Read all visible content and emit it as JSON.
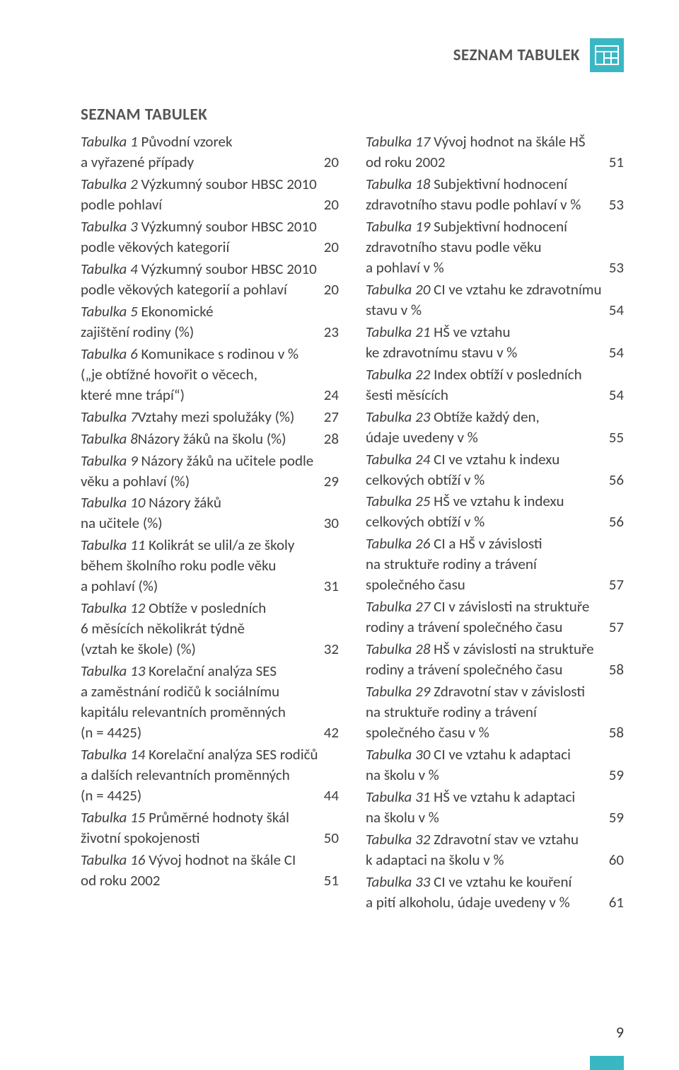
{
  "header": {
    "title": "SEZNAM TABULEK"
  },
  "section_title": "SEZNAM TABULEK",
  "page_number": "9",
  "colors": {
    "accent": "#3bb7c4",
    "text": "#404040",
    "title": "#555555",
    "background": "#ffffff"
  },
  "icon": {
    "line_stroke": "#ffffff",
    "line_width": 2
  },
  "left_entries": [
    {
      "lines": [
        "Tabulka 1 Původní vzorek",
        "a vyřazené případy"
      ],
      "italic_upto": 9,
      "page": "20"
    },
    {
      "lines": [
        "Tabulka 2 Výzkumný soubor HBSC 2010",
        "podle pohlaví"
      ],
      "italic_upto": 9,
      "page": "20"
    },
    {
      "lines": [
        "Tabulka 3 Výzkumný soubor HBSC 2010",
        "podle věkových kategorií"
      ],
      "italic_upto": 9,
      "page": "20"
    },
    {
      "lines": [
        "Tabulka 4 Výzkumný soubor HBSC 2010",
        "podle věkových kategorií a pohlaví"
      ],
      "italic_upto": 9,
      "page": "20"
    },
    {
      "lines": [
        "Tabulka 5 Ekonomické",
        "zajištění rodiny (%)"
      ],
      "italic_upto": 9,
      "page": "23"
    },
    {
      "lines": [
        "Tabulka 6 Komunikace s rodinou v %",
        "(„je obtížné hovořit o věcech,",
        "které mne trápí“)"
      ],
      "italic_upto": 9,
      "page": "24"
    },
    {
      "lines": [
        "Tabulka 7 Vztahy mezi spolužáky (%)"
      ],
      "italic_upto": 9,
      "page": "27"
    },
    {
      "lines": [
        "Tabulka 8 Názory žáků na školu (%)"
      ],
      "italic_upto": 9,
      "page": "28"
    },
    {
      "lines": [
        "Tabulka 9 Názory žáků na učitele podle",
        "věku a pohlaví (%)"
      ],
      "italic_upto": 9,
      "page": "29"
    },
    {
      "lines": [
        "Tabulka 10 Názory žáků",
        "na učitele (%)"
      ],
      "italic_upto": 10,
      "page": "30"
    },
    {
      "lines": [
        "Tabulka 11 Kolikrát se ulil/a ze školy",
        "během školního roku podle věku",
        "a pohlaví (%)"
      ],
      "italic_upto": 10,
      "page": "31"
    },
    {
      "lines": [
        "Tabulka 12 Obtíže v posledních",
        "6 měsících několikrát týdně",
        "(vztah ke škole) (%)"
      ],
      "italic_upto": 10,
      "page": "32"
    },
    {
      "lines": [
        "Tabulka 13 Korelační analýza SES",
        "a zaměstnání rodičů k sociálnímu",
        "kapitálu relevantních proměnných",
        "(n = 4425)"
      ],
      "italic_upto": 10,
      "page": "42"
    },
    {
      "lines": [
        "Tabulka 14 Korelační analýza SES rodičů",
        "a dalších relevantních proměnných",
        "(n = 4425)"
      ],
      "italic_upto": 10,
      "page": "44"
    },
    {
      "lines": [
        "Tabulka 15 Průměrné hodnoty škál",
        "životní spokojenosti"
      ],
      "italic_upto": 10,
      "page": "50"
    },
    {
      "lines": [
        "Tabulka 16 Vývoj hodnot na škále CI",
        "od roku 2002"
      ],
      "italic_upto": 10,
      "page": "51"
    }
  ],
  "right_entries": [
    {
      "lines": [
        "Tabulka 17 Vývoj hodnot na škále HŠ",
        "od roku 2002"
      ],
      "italic_upto": 10,
      "page": "51"
    },
    {
      "lines": [
        "Tabulka 18 Subjektivní hodnocení",
        "zdravotního stavu podle pohlaví v %"
      ],
      "italic_upto": 10,
      "page": "53"
    },
    {
      "lines": [
        "Tabulka 19 Subjektivní hodnocení",
        "zdravotního stavu podle věku",
        "a pohlaví v %"
      ],
      "italic_upto": 10,
      "page": "53"
    },
    {
      "lines": [
        "Tabulka 20 CI ve vztahu ke zdravotnímu",
        "stavu v %"
      ],
      "italic_upto": 10,
      "page": "54"
    },
    {
      "lines": [
        "Tabulka 21 HŠ ve vztahu",
        "ke zdravotnímu stavu v %"
      ],
      "italic_upto": 10,
      "page": "54"
    },
    {
      "lines": [
        "Tabulka 22 Index obtíží v posledních",
        "šesti měsících"
      ],
      "italic_upto": 10,
      "page": "54"
    },
    {
      "lines": [
        "Tabulka 23 Obtíže každý den,",
        "údaje uvedeny v %"
      ],
      "italic_upto": 10,
      "page": "55"
    },
    {
      "lines": [
        "Tabulka 24 CI ve vztahu k indexu",
        "celkových obtíží v %"
      ],
      "italic_upto": 10,
      "page": "56"
    },
    {
      "lines": [
        "Tabulka 25 HŠ ve vztahu k indexu",
        "celkových obtíží v %"
      ],
      "italic_upto": 10,
      "page": "56"
    },
    {
      "lines": [
        "Tabulka 26 CI a HŠ v závislosti",
        "na struktuře rodiny a trávení",
        "společného času"
      ],
      "italic_upto": 10,
      "page": "57"
    },
    {
      "lines": [
        "Tabulka 27 CI v závislosti na struktuře",
        "rodiny a trávení společného času"
      ],
      "italic_upto": 10,
      "page": "57"
    },
    {
      "lines": [
        "Tabulka 28 HŠ v závislosti na struktuře",
        "rodiny a trávení společného času"
      ],
      "italic_upto": 10,
      "page": "58"
    },
    {
      "lines": [
        "Tabulka 29 Zdravotní stav v závislosti",
        "na struktuře rodiny a trávení",
        "společného času v %"
      ],
      "italic_upto": 10,
      "page": "58"
    },
    {
      "lines": [
        "Tabulka 30 CI ve vztahu k adaptaci",
        "na školu v %"
      ],
      "italic_upto": 10,
      "page": "59"
    },
    {
      "lines": [
        "Tabulka 31 HŠ ve vztahu k adaptaci",
        "na školu v %"
      ],
      "italic_upto": 10,
      "page": "59"
    },
    {
      "lines": [
        "Tabulka 32 Zdravotní stav ve vztahu",
        "k adaptaci na školu v %"
      ],
      "italic_upto": 10,
      "page": "60"
    },
    {
      "lines": [
        "Tabulka 33 CI ve vztahu ke kouření",
        "a pití alkoholu, údaje uvedeny v %"
      ],
      "italic_upto": 10,
      "page": "61"
    }
  ]
}
